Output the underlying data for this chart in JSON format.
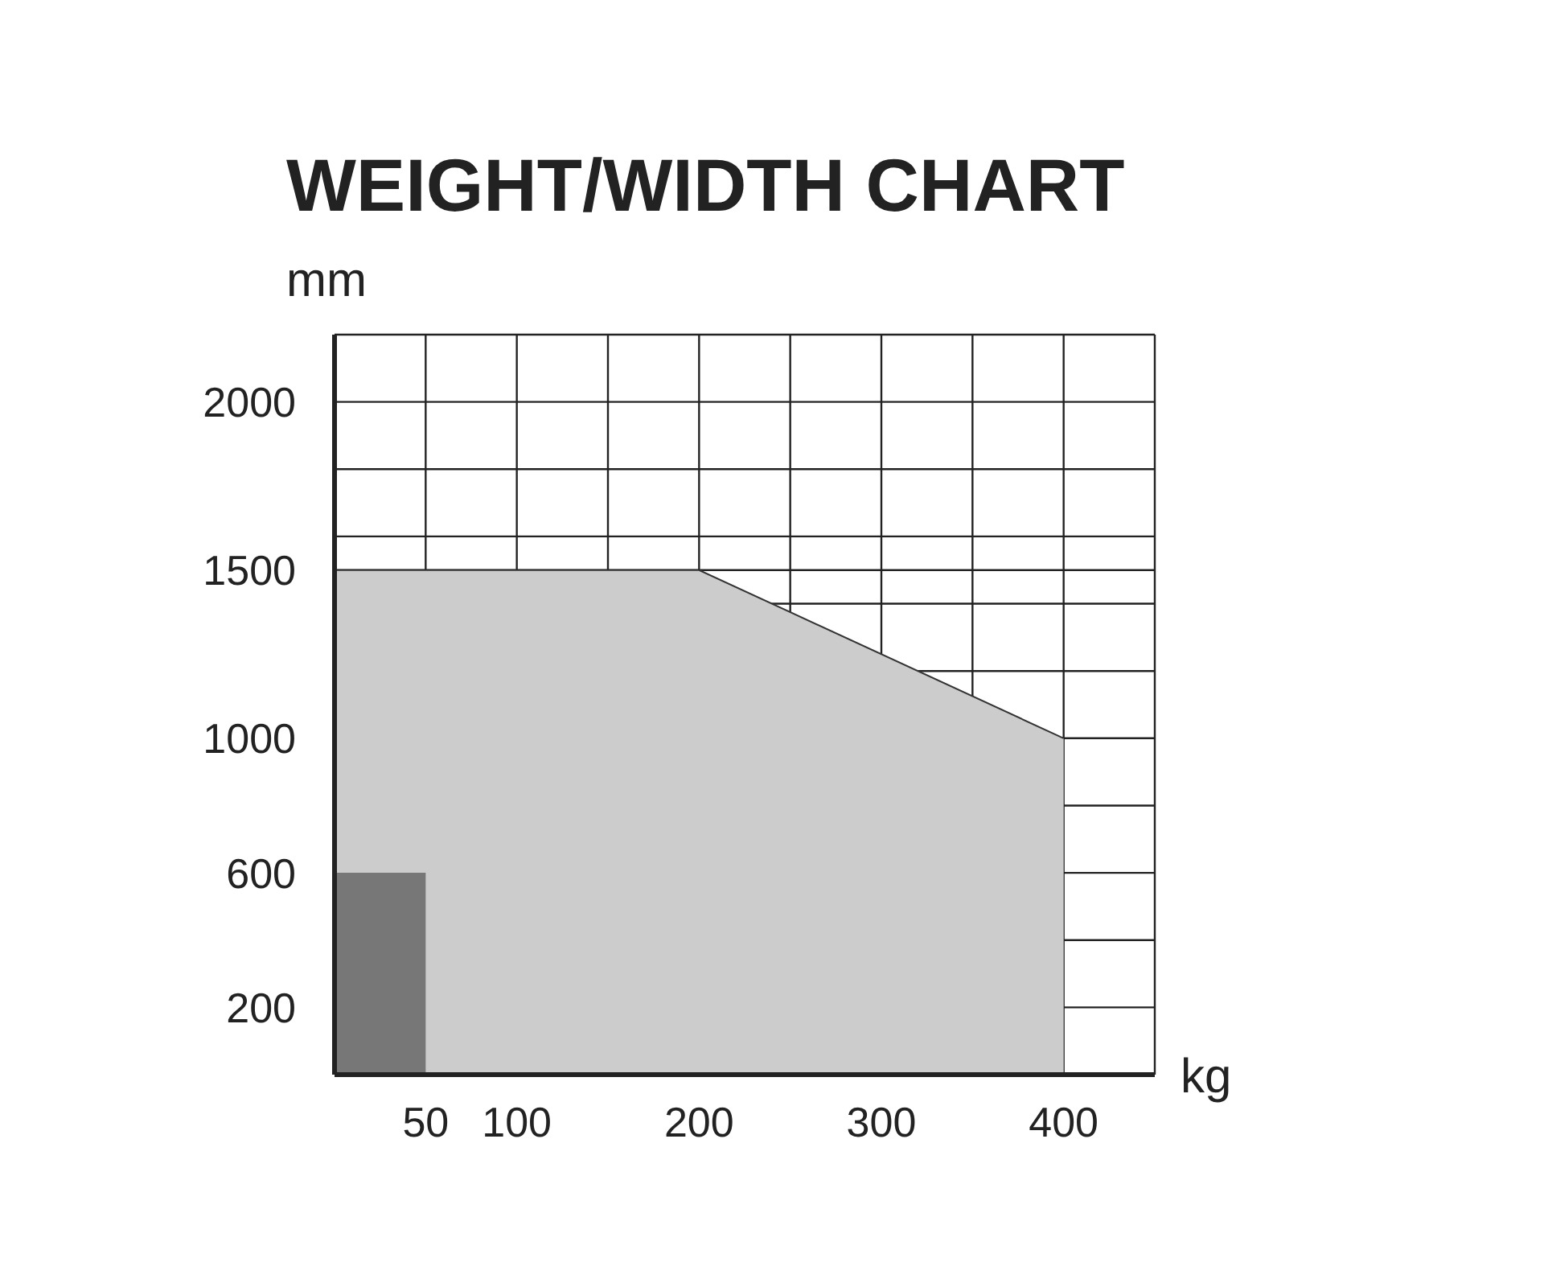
{
  "chart_data": {
    "type": "area",
    "title": "WEIGHT/WIDTH CHART",
    "xlabel": "kg",
    "ylabel": "mm",
    "series": [
      {
        "x": [
          0,
          200,
          400
        ],
        "values": [
          1500,
          1500,
          1000
        ],
        "color": "#cccccc"
      },
      {
        "x": [
          0,
          50
        ],
        "values": [
          600,
          600
        ],
        "color": "#777777"
      }
    ],
    "xlim": [
      0,
      450
    ],
    "xticks": [
      50,
      100,
      {
        "value": 150,
        "label": null
      },
      200,
      {
        "value": 250,
        "label": null
      },
      300,
      {
        "value": 350,
        "label": null
      },
      400,
      {
        "value": 450,
        "label": null
      }
    ],
    "ylim": [
      0,
      2200
    ],
    "yticks": [
      200,
      {
        "value": 400,
        "label": null
      },
      600,
      {
        "value": 800,
        "label": null
      },
      1000,
      {
        "value": 1200,
        "label": null
      },
      {
        "value": 1400,
        "label": null
      },
      1500,
      {
        "value": 1600,
        "label": null
      },
      {
        "value": 1800,
        "label": null
      },
      2000
    ],
    "grid": true,
    "legend": false
  }
}
